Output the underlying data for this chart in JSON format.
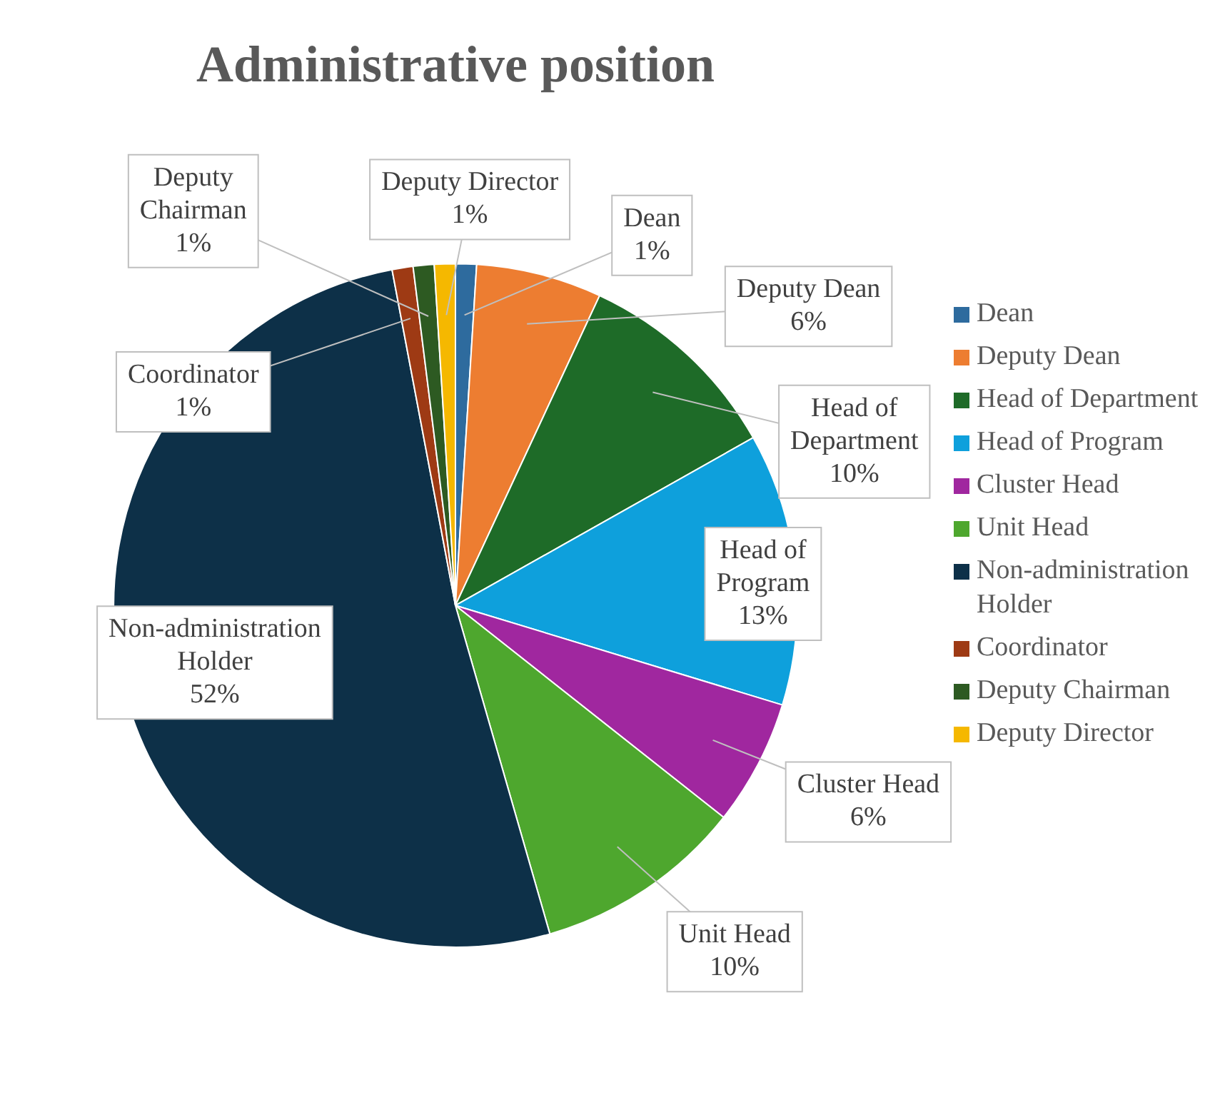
{
  "chart_data": {
    "type": "pie",
    "title": "Administrative position",
    "legend": "right",
    "categories": [
      "Dean",
      "Deputy Dean",
      "Head of Department",
      "Head of Program",
      "Cluster Head",
      "Unit Head",
      "Non-administration Holder",
      "Coordinator",
      "Deputy Chairman",
      "Deputy Director"
    ],
    "values": [
      1,
      6,
      10,
      13,
      6,
      10,
      52,
      1,
      1,
      1
    ],
    "value_labels": [
      "1%",
      "6%",
      "10%",
      "13%",
      "6%",
      "10%",
      "52%",
      "1%",
      "1%",
      "1%"
    ],
    "colors": [
      "#2e6b9e",
      "#ed7d31",
      "#1e6b28",
      "#0ea0dc",
      "#a0279f",
      "#4ea72e",
      "#0d3048",
      "#9e3a14",
      "#2d5a22",
      "#f5b800"
    ]
  }
}
